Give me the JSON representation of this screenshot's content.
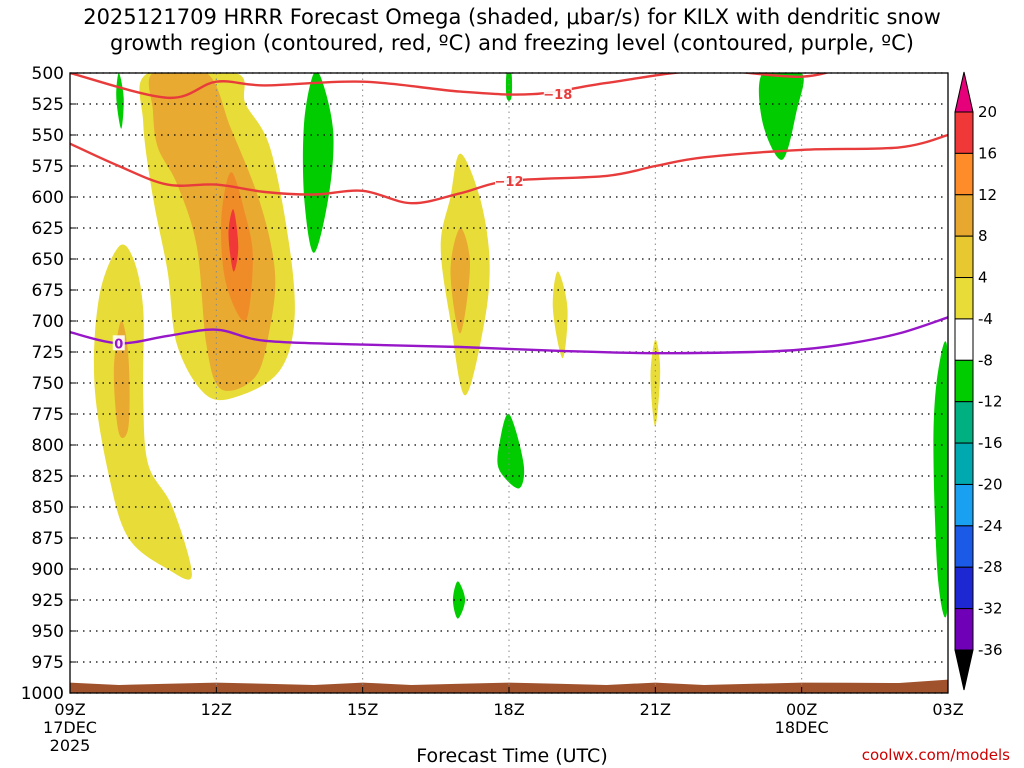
{
  "title": {
    "line1": "2025121709 HRRR Forecast Omega (shaded, μbar/s) for KILX with dendritic snow",
    "line2": "growth region (contoured, red, ºC) and freezing level (contoured, purple, ºC)"
  },
  "credit": "coolwx.com/models",
  "chart_data": {
    "type": "heatmap",
    "xlabel": "Forecast Time (UTC)",
    "x_range_hours": [
      0,
      18
    ],
    "x_ticks": [
      {
        "hour": 0,
        "label": "09Z",
        "sub": [
          "17DEC",
          "2025"
        ]
      },
      {
        "hour": 3,
        "label": "12Z",
        "sub": []
      },
      {
        "hour": 6,
        "label": "15Z",
        "sub": []
      },
      {
        "hour": 9,
        "label": "18Z",
        "sub": []
      },
      {
        "hour": 12,
        "label": "21Z",
        "sub": []
      },
      {
        "hour": 15,
        "label": "00Z",
        "sub": [
          "18DEC"
        ]
      },
      {
        "hour": 18,
        "label": "03Z",
        "sub": []
      }
    ],
    "y_ticks": [
      500,
      525,
      550,
      575,
      600,
      625,
      650,
      675,
      700,
      725,
      750,
      775,
      800,
      825,
      850,
      875,
      900,
      925,
      950,
      975,
      1000
    ],
    "y_range_hpa": [
      500,
      1000
    ],
    "colorbar": {
      "labels": [
        "20",
        "16",
        "12",
        "8",
        "4",
        "-4",
        "-8",
        "-12",
        "-16",
        "-20",
        "-24",
        "-28",
        "-32",
        "-36"
      ],
      "colors": [
        "#f03838",
        "#ff8c28",
        "#e8a830",
        "#e8c830",
        "#e8dc38",
        "#ffffff",
        "#00cc00",
        "#00b080",
        "#00a8b0",
        "#1aa0f0",
        "#1a5ae6",
        "#1e28d2",
        "#7000b8",
        "#9000c0",
        "#a8a8a8"
      ],
      "top_arrow": "#e6007a",
      "bottom_arrow": "#000000"
    },
    "omega_regions": [
      {
        "level": 4,
        "pts": [
          [
            1.0,
            640
          ],
          [
            1.3,
            650
          ],
          [
            1.5,
            690
          ],
          [
            1.5,
            760
          ],
          [
            1.6,
            815
          ],
          [
            2.1,
            850
          ],
          [
            2.5,
            905
          ],
          [
            2.0,
            900
          ],
          [
            1.2,
            875
          ],
          [
            0.8,
            825
          ],
          [
            0.5,
            750
          ],
          [
            0.6,
            680
          ]
        ]
      },
      {
        "level": 8,
        "pts": [
          [
            1.05,
            700
          ],
          [
            1.2,
            730
          ],
          [
            1.2,
            785
          ],
          [
            1.0,
            790
          ],
          [
            0.9,
            740
          ]
        ]
      },
      {
        "level": 4,
        "pts": [
          [
            1.6,
            500
          ],
          [
            3.4,
            500
          ],
          [
            3.6,
            525
          ],
          [
            4.1,
            560
          ],
          [
            4.5,
            640
          ],
          [
            4.6,
            700
          ],
          [
            4.3,
            740
          ],
          [
            3.5,
            760
          ],
          [
            2.8,
            760
          ],
          [
            2.2,
            720
          ],
          [
            2.0,
            660
          ],
          [
            1.7,
            600
          ],
          [
            1.5,
            540
          ]
        ]
      },
      {
        "level": 8,
        "pts": [
          [
            1.7,
            500
          ],
          [
            2.8,
            500
          ],
          [
            3.3,
            545
          ],
          [
            3.9,
            605
          ],
          [
            4.2,
            660
          ],
          [
            4.1,
            705
          ],
          [
            3.8,
            745
          ],
          [
            3.1,
            755
          ],
          [
            2.8,
            720
          ],
          [
            2.6,
            640
          ],
          [
            2.2,
            590
          ],
          [
            1.8,
            560
          ],
          [
            1.7,
            530
          ]
        ]
      },
      {
        "level": 12,
        "pts": [
          [
            3.3,
            580
          ],
          [
            3.6,
            615
          ],
          [
            3.75,
            650
          ],
          [
            3.6,
            700
          ],
          [
            3.2,
            670
          ],
          [
            3.1,
            620
          ]
        ]
      },
      {
        "level": 16,
        "pts": [
          [
            3.35,
            610
          ],
          [
            3.45,
            640
          ],
          [
            3.35,
            660
          ],
          [
            3.25,
            630
          ]
        ]
      },
      {
        "level": -8,
        "pts": [
          [
            5.0,
            500
          ],
          [
            5.2,
            510
          ],
          [
            5.4,
            550
          ],
          [
            5.3,
            600
          ],
          [
            5.0,
            645
          ],
          [
            4.8,
            600
          ],
          [
            4.8,
            540
          ]
        ]
      },
      {
        "level": -8,
        "pts": [
          [
            1.0,
            500
          ],
          [
            1.1,
            520
          ],
          [
            1.05,
            545
          ],
          [
            0.95,
            520
          ]
        ]
      },
      {
        "level": 4,
        "pts": [
          [
            8.0,
            565
          ],
          [
            8.4,
            600
          ],
          [
            8.6,
            650
          ],
          [
            8.5,
            700
          ],
          [
            8.1,
            760
          ],
          [
            7.8,
            700
          ],
          [
            7.6,
            640
          ],
          [
            7.8,
            600
          ]
        ]
      },
      {
        "level": 8,
        "pts": [
          [
            8.0,
            625
          ],
          [
            8.2,
            655
          ],
          [
            8.0,
            710
          ],
          [
            7.8,
            660
          ]
        ]
      },
      {
        "level": -8,
        "pts": [
          [
            8.95,
            500
          ],
          [
            9.05,
            500
          ],
          [
            9.05,
            520
          ],
          [
            8.95,
            520
          ]
        ]
      },
      {
        "level": -8,
        "pts": [
          [
            9.0,
            775
          ],
          [
            9.3,
            815
          ],
          [
            9.2,
            835
          ],
          [
            8.8,
            820
          ],
          [
            8.8,
            800
          ]
        ]
      },
      {
        "level": 4,
        "pts": [
          [
            10.0,
            660
          ],
          [
            10.2,
            690
          ],
          [
            10.1,
            730
          ],
          [
            9.9,
            690
          ]
        ]
      },
      {
        "level": 4,
        "pts": [
          [
            12.0,
            715
          ],
          [
            12.1,
            740
          ],
          [
            12.0,
            785
          ],
          [
            11.9,
            745
          ]
        ]
      },
      {
        "level": -8,
        "pts": [
          [
            7.95,
            910
          ],
          [
            8.1,
            925
          ],
          [
            7.95,
            940
          ],
          [
            7.85,
            925
          ]
        ]
      },
      {
        "level": -8,
        "pts": [
          [
            14.2,
            500
          ],
          [
            15.0,
            500
          ],
          [
            14.9,
            530
          ],
          [
            14.6,
            570
          ],
          [
            14.2,
            540
          ]
        ]
      },
      {
        "level": -8,
        "pts": [
          [
            18.0,
            730
          ],
          [
            18.0,
            925
          ],
          [
            17.8,
            910
          ],
          [
            17.7,
            800
          ],
          [
            17.8,
            740
          ]
        ]
      }
    ],
    "contours": [
      {
        "name": "snow-growth-minus18",
        "color": "#e83c3c",
        "label": "−18",
        "label_at": [
          10.0,
          517
        ],
        "pts": [
          [
            0,
            500
          ],
          [
            2.0,
            520
          ],
          [
            3.0,
            507
          ],
          [
            4.0,
            510
          ],
          [
            6.0,
            507
          ],
          [
            8.0,
            515
          ],
          [
            9.5,
            517
          ],
          [
            11.0,
            508
          ],
          [
            13.0,
            498
          ],
          [
            15.0,
            503
          ],
          [
            16.0,
            493
          ]
        ]
      },
      {
        "name": "snow-growth-minus12",
        "color": "#e83c3c",
        "label": "−12",
        "label_at": [
          9.0,
          587
        ],
        "pts": [
          [
            0,
            557
          ],
          [
            1.0,
            575
          ],
          [
            2.0,
            590
          ],
          [
            3.0,
            590
          ],
          [
            4.0,
            596
          ],
          [
            5.0,
            598
          ],
          [
            6.0,
            595
          ],
          [
            7.0,
            605
          ],
          [
            8.0,
            597
          ],
          [
            9.0,
            587
          ],
          [
            11.0,
            583
          ],
          [
            12.0,
            575
          ],
          [
            13.0,
            568
          ],
          [
            15.0,
            562
          ],
          [
            17.0,
            560
          ],
          [
            18.0,
            550
          ]
        ]
      },
      {
        "name": "freezing-level-0",
        "color": "#9616c8",
        "label": "0",
        "label_at": [
          1.0,
          718
        ],
        "pts": [
          [
            0,
            709
          ],
          [
            1.0,
            718
          ],
          [
            2.0,
            712
          ],
          [
            3.0,
            707
          ],
          [
            4.0,
            716
          ],
          [
            6.0,
            719
          ],
          [
            8.0,
            721
          ],
          [
            10.0,
            724
          ],
          [
            12.0,
            726
          ],
          [
            14.0,
            725
          ],
          [
            15.0,
            723
          ],
          [
            16.0,
            718
          ],
          [
            17.0,
            710
          ],
          [
            18.0,
            697
          ]
        ]
      }
    ],
    "terrain_color": "#a0522d",
    "terrain_top_hpa": 991
  }
}
